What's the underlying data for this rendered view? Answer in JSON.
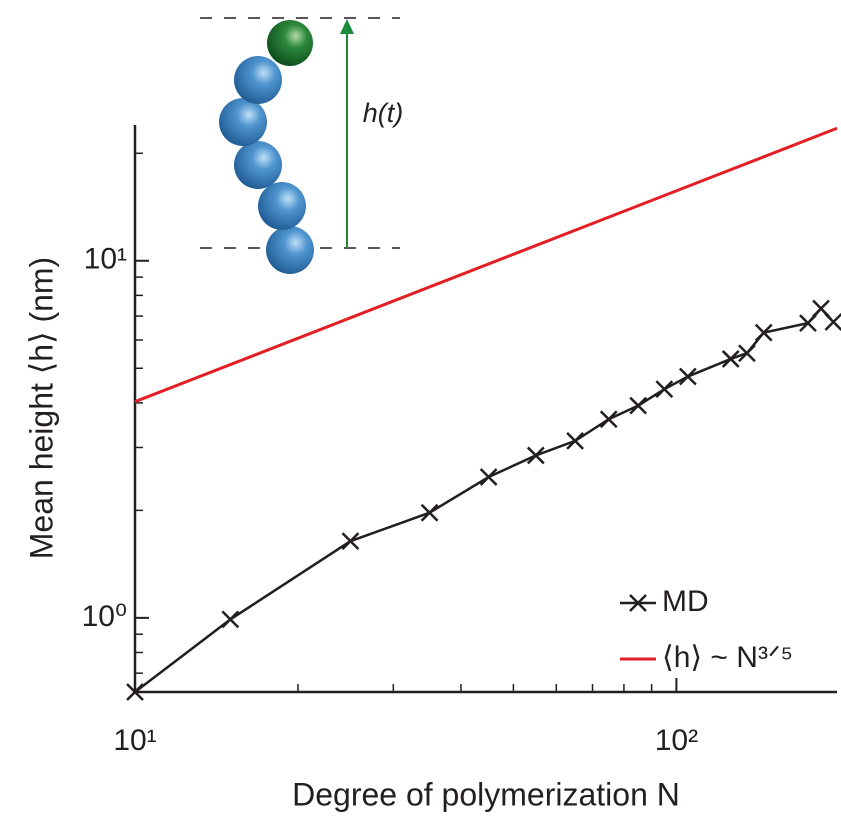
{
  "chart_data": {
    "type": "line",
    "x_label": "Degree of polymerization N",
    "y_label": "Mean height ⟨h⟩ (nm)",
    "inset_label": "h(t)",
    "log_x": true,
    "log_y": true,
    "legend": "lower right",
    "xlim": [
      10,
      198
    ],
    "ylim": [
      0.62,
      24
    ],
    "xticks": [
      {
        "value": 10,
        "label": "10¹"
      },
      {
        "value": 100,
        "label": "10²"
      }
    ],
    "yticks": [
      {
        "value": 1,
        "label": "10⁰"
      },
      {
        "value": 10,
        "label": "10¹"
      }
    ],
    "xminorticks": [
      20,
      30,
      40,
      50,
      60,
      70,
      80,
      90
    ],
    "yminorticks": [
      0.7,
      0.8,
      0.9,
      2,
      3,
      4,
      5,
      6,
      7,
      8,
      9,
      20
    ],
    "series": [
      {
        "name": "MD",
        "color": "#231f20",
        "marker": "x",
        "x": [
          10,
          15,
          25,
          35,
          45,
          55,
          65,
          75,
          85,
          95,
          105,
          126,
          135,
          145,
          175,
          185,
          195
        ],
        "values": [
          0.62,
          0.99,
          1.64,
          1.97,
          2.48,
          2.85,
          3.13,
          3.6,
          3.93,
          4.37,
          4.74,
          5.31,
          5.51,
          6.29,
          6.69,
          7.35,
          6.74
        ]
      },
      {
        "name": "⟨h⟩ ~ N³ᐟ⁵",
        "color": "#e31e24",
        "marker": "none",
        "x": [
          10,
          198
        ],
        "values": [
          4.03,
          23.5
        ]
      }
    ]
  }
}
